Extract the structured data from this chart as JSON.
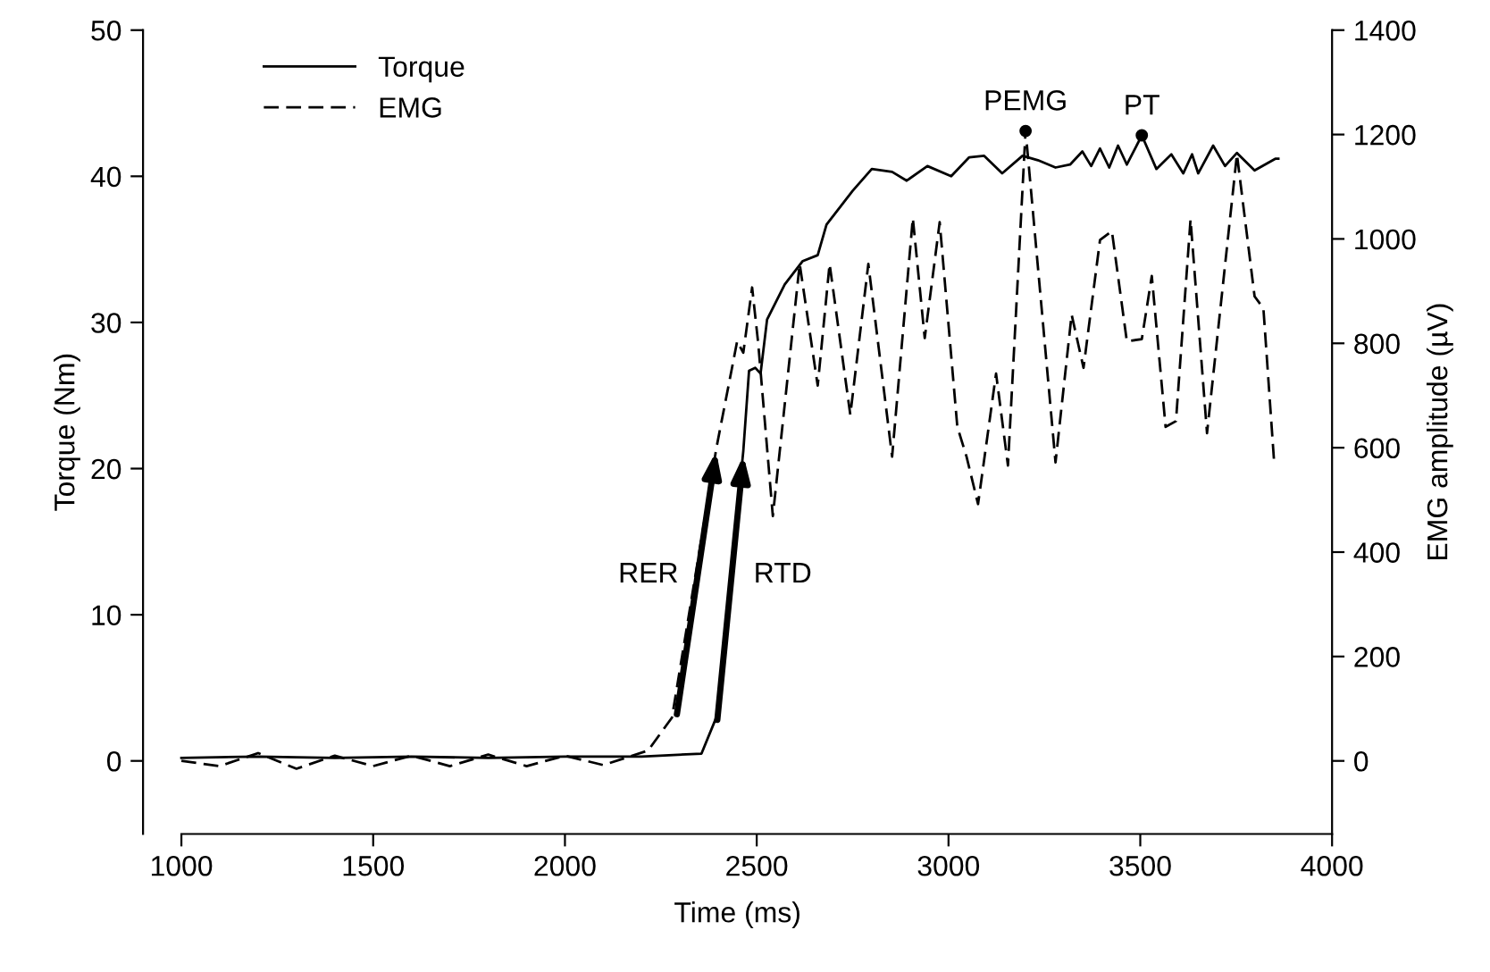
{
  "chart_data": {
    "type": "line",
    "xlabel": "Time (ms)",
    "ylabel": "Torque (Nm)",
    "y2label": "EMG amplitude (µV)",
    "xlim": [
      900,
      4000
    ],
    "xticks": [
      1000,
      1500,
      2000,
      2500,
      3000,
      3500,
      4000
    ],
    "ylim": [
      -5,
      50
    ],
    "yticks": [
      0,
      10,
      20,
      30,
      40,
      50
    ],
    "y2lim": [
      -140,
      1400
    ],
    "y2ticks": [
      0,
      200,
      400,
      600,
      800,
      1000,
      1200,
      1400
    ],
    "grid": false,
    "legend": "top left",
    "marker": "none",
    "series": [
      {
        "name": "Torque",
        "color": "#000000",
        "line_style": "solid",
        "x": [
          1000,
          1200,
          1400,
          1600,
          1800,
          2000,
          2200,
          2356,
          2395,
          2430,
          2465,
          2480,
          2496,
          2510,
          2527,
          2573,
          2620,
          2659,
          2682,
          2750,
          2800,
          2853,
          2891,
          2945,
          3007,
          3054,
          3093,
          3140,
          3193,
          3233,
          3279,
          3317,
          3349,
          3372,
          3395,
          3419,
          3442,
          3465,
          3504,
          3542,
          3581,
          3612,
          3635,
          3651,
          3690,
          3721,
          3752,
          3798,
          3852,
          3860
        ],
        "values": [
          0.2,
          0.3,
          0.2,
          0.3,
          0.2,
          0.3,
          0.3,
          0.5,
          3.0,
          12,
          21.2,
          26.7,
          26.9,
          26.5,
          30.2,
          32.6,
          34.2,
          34.6,
          36.7,
          39,
          40.5,
          40.3,
          39.7,
          40.7,
          40.0,
          41.3,
          41.4,
          40.2,
          41.4,
          41.1,
          40.6,
          40.8,
          41.7,
          40.7,
          41.9,
          40.6,
          42.1,
          40.8,
          42.8,
          40.5,
          41.5,
          40.2,
          41.5,
          40.2,
          42.1,
          40.7,
          41.6,
          40.4,
          41.2,
          41.2
        ]
      },
      {
        "name": "EMG",
        "color": "#000000",
        "line_style": "dashed",
        "axis": "y2",
        "x": [
          1000,
          1100,
          1200,
          1300,
          1400,
          1500,
          1600,
          1700,
          1800,
          1900,
          2000,
          2100,
          2217,
          2279,
          2395,
          2449,
          2465,
          2488,
          2504,
          2542,
          2612,
          2659,
          2690,
          2744,
          2791,
          2853,
          2907,
          2938,
          2977,
          3023,
          3047,
          3077,
          3124,
          3155,
          3201,
          3279,
          3321,
          3352,
          3395,
          3426,
          3465,
          3504,
          3530,
          3566,
          3593,
          3631,
          3674,
          3752,
          3798,
          3821,
          3849
        ],
        "values": [
          0,
          -10,
          15,
          -15,
          10,
          -10,
          10,
          -10,
          12,
          -10,
          10,
          -8,
          20,
          83,
          600,
          804,
          782,
          907,
          799,
          469,
          952,
          719,
          952,
          663,
          952,
          583,
          1040,
          810,
          1032,
          640,
          583,
          492,
          742,
          566,
          1208,
          572,
          855,
          753,
          998,
          1015,
          804,
          808,
          929,
          640,
          651,
          1037,
          628,
          1162,
          890,
          867,
          572
        ]
      }
    ],
    "annotations": [
      "RER",
      "RTD",
      {
        "text": "PEMG",
        "x": 3201,
        "y": 43.1
      },
      {
        "text": "PT",
        "x": 3504,
        "y": 42.8
      }
    ]
  }
}
